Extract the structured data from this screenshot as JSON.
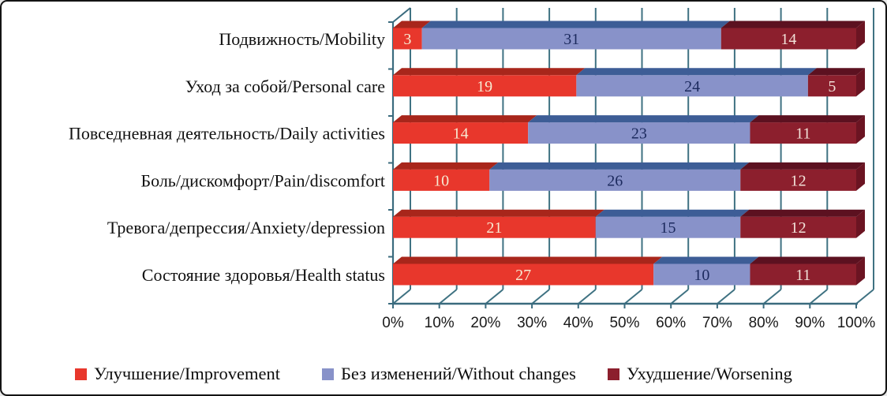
{
  "figure": {
    "background": "#ffffff",
    "border_color": "#141414"
  },
  "chart_data": {
    "type": "bar",
    "subtype": "horizontal-stacked-3d",
    "title": "",
    "xlabel": "",
    "ylabel": "",
    "categories": [
      "Подвижность/Mobility",
      "Уход за собой/Personal care",
      "Повседневная деятельность/Daily activities",
      "Боль/дискомфорт/Pain/discomfort",
      "Тревога/депрессия/Anxiety/depression",
      "Состояние здоровья/Health status"
    ],
    "series": [
      {
        "name": "Улучшение/Improvement",
        "color": "#e8372c",
        "top_color": "#a8261b",
        "side_color": "#9c2217",
        "label_color": "#f7ead2",
        "values": [
          3,
          19,
          14,
          10,
          21,
          27
        ]
      },
      {
        "name": "Без изменений/Without changes",
        "color": "#8892c9",
        "top_color": "#3d5d96",
        "side_color": "#4a5f9e",
        "label_color": "#1c2a5e",
        "values": [
          31,
          24,
          23,
          26,
          15,
          10
        ]
      },
      {
        "name": "Ухудшение/Worsening",
        "color": "#8c1f2d",
        "top_color": "#5c1120",
        "side_color": "#6b1422",
        "label_color": "#f2e2d9",
        "values": [
          14,
          5,
          11,
          12,
          12,
          11
        ]
      }
    ],
    "x_axis": {
      "tick_labels": [
        "0%",
        "10%",
        "20%",
        "30%",
        "40%",
        "50%",
        "60%",
        "70%",
        "80%",
        "90%",
        "100%"
      ],
      "min": 0,
      "max": 100,
      "unit": "%"
    },
    "grid": {
      "show": true,
      "color": "#3f7282"
    },
    "axis_color": "#3a6b7e",
    "legend": {
      "position": "bottom"
    }
  }
}
